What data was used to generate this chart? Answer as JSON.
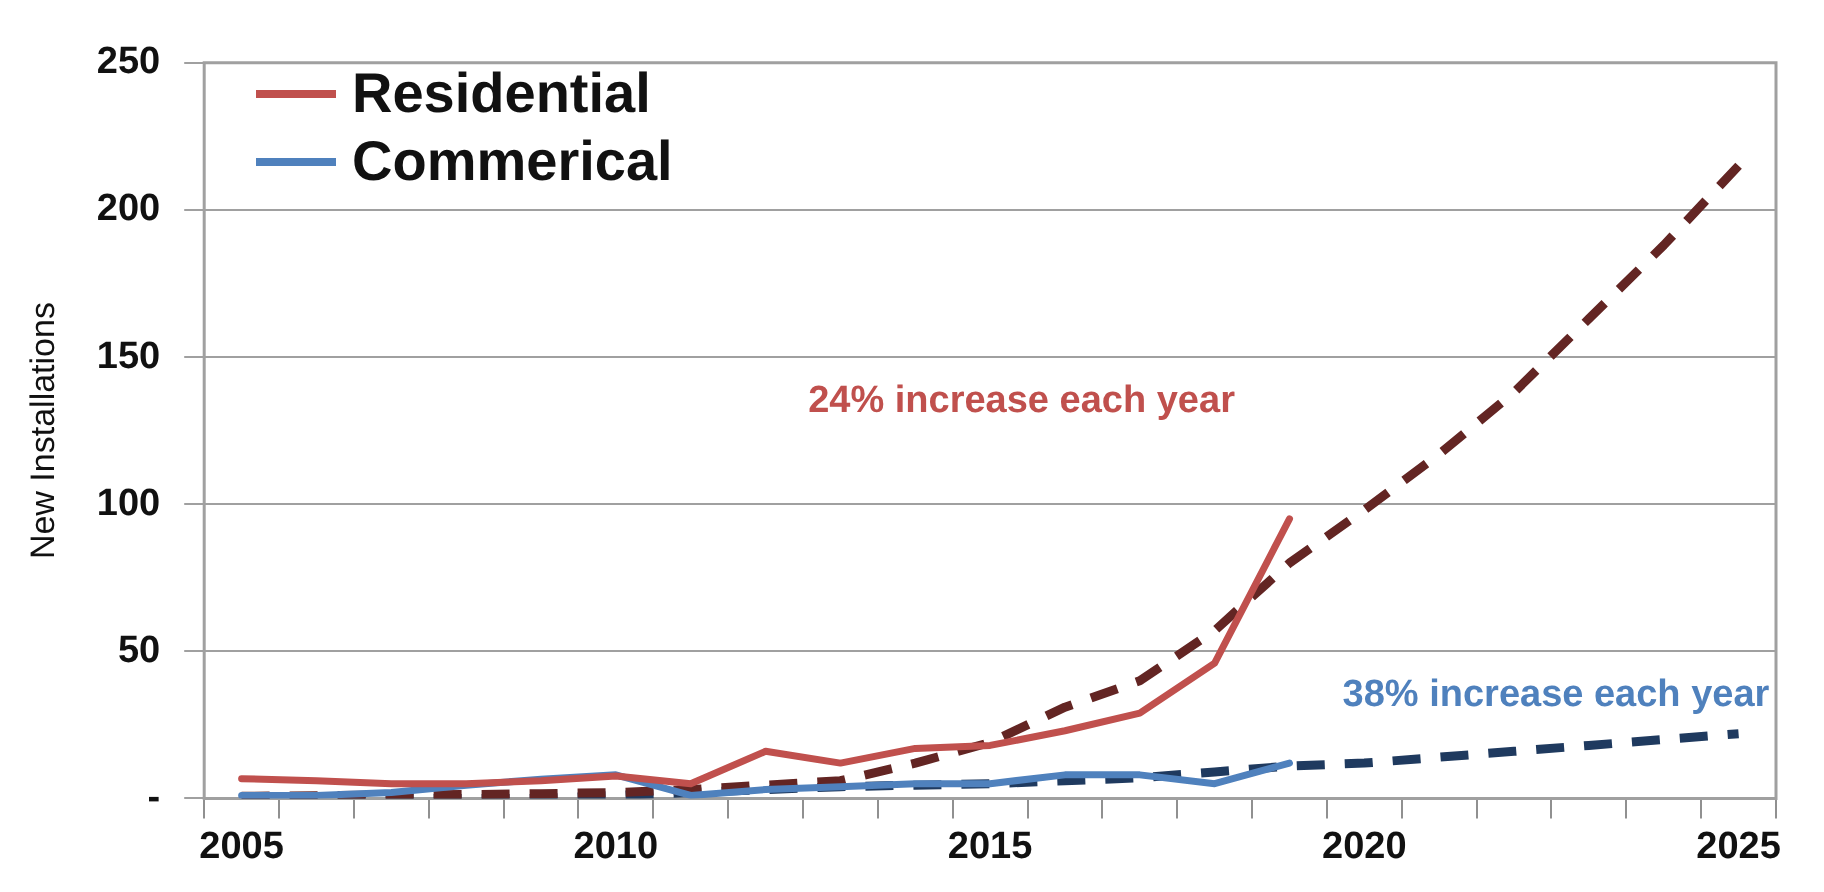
{
  "chart_data": {
    "type": "line",
    "ylabel": "New Installations",
    "categories": [
      "2005",
      null,
      null,
      null,
      null,
      "2010",
      null,
      null,
      null,
      null,
      "2015",
      null,
      null,
      null,
      null,
      "2020",
      null,
      null,
      null,
      null,
      "2025"
    ],
    "series": [
      {
        "name": "Residential",
        "color": "#c0504d",
        "line_style": "solid",
        "values": [
          6.7,
          6,
          5,
          5,
          6,
          7.6,
          5,
          16,
          12,
          17,
          18,
          23,
          29,
          46,
          95,
          null,
          null,
          null,
          null,
          null,
          null
        ]
      },
      {
        "name": "Commerical",
        "color": "#4f81bd",
        "line_style": "solid",
        "values": [
          1,
          1,
          2,
          4.5,
          6.5,
          8,
          1,
          3,
          4,
          5,
          5,
          8,
          8,
          5,
          12,
          null,
          null,
          null,
          null,
          null,
          null
        ]
      },
      {
        "color": "#632523",
        "line_style": "dashed",
        "values": [
          0.7,
          0.9,
          1.1,
          1.3,
          1.6,
          2,
          3,
          4.5,
          6,
          12,
          19,
          31,
          40,
          57,
          80,
          98,
          117,
          138,
          163,
          188,
          215
        ]
      },
      {
        "color": "#1f3a5f",
        "line_style": "dashed",
        "values": [
          0,
          0,
          0,
          0,
          0,
          1,
          2,
          3,
          4,
          4.5,
          5,
          6,
          7,
          9,
          11,
          12,
          14,
          16,
          18,
          20,
          22
        ]
      }
    ],
    "ylim": [
      0,
      250
    ],
    "yticks": [
      {
        "value": 0,
        "label": "-"
      },
      50,
      100,
      150,
      200,
      250
    ],
    "grid": "y",
    "legend": "top left",
    "marker": "none",
    "annotations": [
      "24% increase each year",
      "38% increase each year"
    ]
  }
}
